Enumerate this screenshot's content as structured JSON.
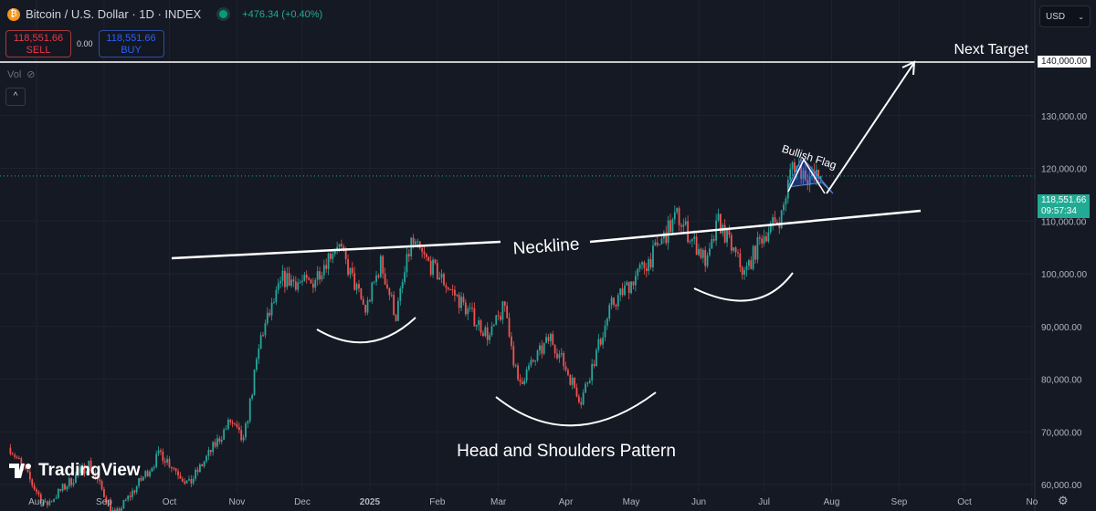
{
  "header": {
    "symbol_icon": "bitcoin-icon",
    "title": "Bitcoin / U.S. Dollar · 1D · INDEX",
    "status_icon": "market-open-dot",
    "change": "+476.34 (+0.40%)"
  },
  "trade": {
    "sell_price": "118,551.66",
    "sell_label": "SELL",
    "spread": "0.00",
    "buy_price": "118,551.66",
    "buy_label": "BUY"
  },
  "volume": {
    "label": "Vol",
    "icon": "eye-hidden-icon"
  },
  "currency": "USD",
  "colors": {
    "up": "#26a69a",
    "down": "#ef5350",
    "background": "#151924",
    "annotation": "#ffffff"
  },
  "branding": {
    "logo_text": "TradingView"
  },
  "chart_data": {
    "type": "candlestick",
    "title": "",
    "y_ticks": [
      "60,000.00",
      "70,000.00",
      "80,000.00",
      "90,000.00",
      "100,000.00",
      "110,000.00",
      "120,000.00",
      "130,000.00",
      "140,000.00"
    ],
    "ylim": [
      60000,
      142000
    ],
    "x_ticks": [
      "Aug",
      "Sep",
      "Oct",
      "Nov",
      "Dec",
      "2025",
      "Feb",
      "Mar",
      "Apr",
      "May",
      "Jun",
      "Jul",
      "Aug",
      "Sep",
      "Oct",
      "No"
    ],
    "x_tick_dates": [
      "2024-08-01",
      "2024-09-01",
      "2024-10-01",
      "2024-11-01",
      "2024-12-01",
      "2025-01-01",
      "2025-02-01",
      "2025-03-01",
      "2025-04-01",
      "2025-05-01",
      "2025-06-01",
      "2025-07-01",
      "2025-08-01",
      "2025-09-01",
      "2025-10-01",
      "2025-11-01"
    ],
    "approx_close_path": [
      [
        "2024-07-20",
        67000
      ],
      [
        "2024-08-05",
        56000
      ],
      [
        "2024-08-25",
        64000
      ],
      [
        "2024-09-06",
        54000
      ],
      [
        "2024-09-27",
        66000
      ],
      [
        "2024-10-10",
        60000
      ],
      [
        "2024-10-29",
        72000
      ],
      [
        "2024-11-04",
        68000
      ],
      [
        "2024-11-12",
        88000
      ],
      [
        "2024-11-22",
        99000
      ],
      [
        "2024-12-05",
        98000
      ],
      [
        "2024-12-17",
        106000
      ],
      [
        "2024-12-30",
        93000
      ],
      [
        "2025-01-06",
        102000
      ],
      [
        "2025-01-13",
        92000
      ],
      [
        "2025-01-20",
        106000
      ],
      [
        "2025-02-01",
        100000
      ],
      [
        "2025-02-25",
        88000
      ],
      [
        "2025-03-04",
        94000
      ],
      [
        "2025-03-10",
        79000
      ],
      [
        "2025-03-25",
        88000
      ],
      [
        "2025-04-08",
        76000
      ],
      [
        "2025-04-22",
        94000
      ],
      [
        "2025-05-10",
        103000
      ],
      [
        "2025-05-22",
        111000
      ],
      [
        "2025-06-05",
        102000
      ],
      [
        "2025-06-10",
        110000
      ],
      [
        "2025-06-22",
        100000
      ],
      [
        "2025-06-30",
        107000
      ],
      [
        "2025-07-09",
        111000
      ],
      [
        "2025-07-14",
        121000
      ],
      [
        "2025-07-23",
        118000
      ],
      [
        "2025-07-27",
        118551.66
      ]
    ],
    "last_price": {
      "value": 118551.66,
      "label": "118,551.66",
      "countdown": "09:57:34"
    },
    "target": {
      "value": 140000,
      "label": "140,000.00",
      "text": "Next Target"
    },
    "annotations": {
      "neckline": "Neckline",
      "flag": "Bullish Flag",
      "pattern": "Head and Shoulders Pattern"
    }
  }
}
